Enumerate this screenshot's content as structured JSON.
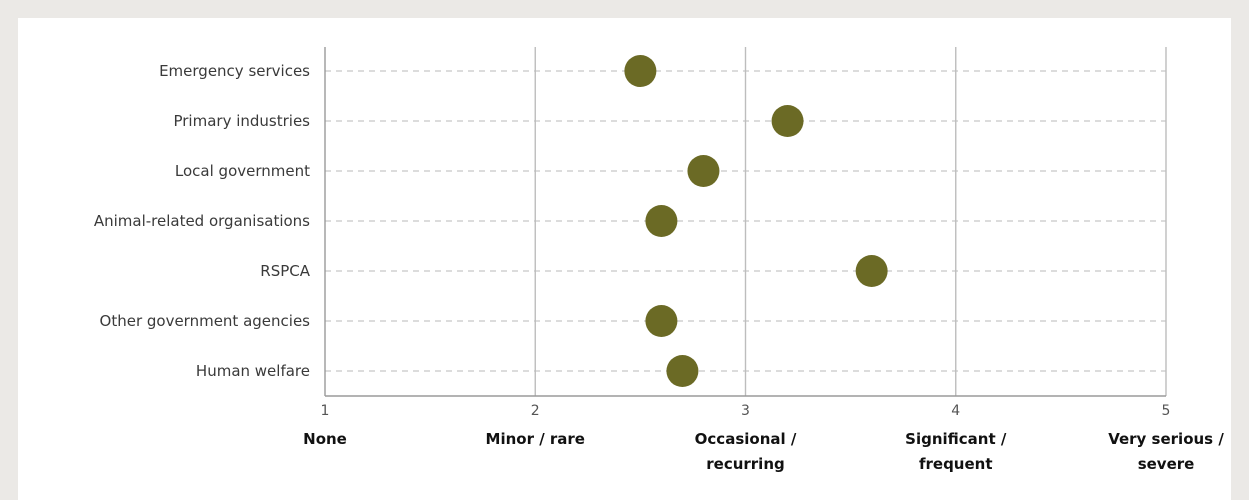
{
  "chart_data": {
    "type": "scatter",
    "categories": [
      "Emergency services",
      "Primary industries",
      "Local government",
      "Animal-related organisations",
      "RSPCA",
      "Other government agencies",
      "Human welfare"
    ],
    "values": [
      2.5,
      3.2,
      2.8,
      2.6,
      3.6,
      2.6,
      2.7
    ],
    "xlim": [
      1,
      5
    ],
    "xticks": [
      {
        "value": 1,
        "number": "1",
        "label": [
          "None"
        ]
      },
      {
        "value": 2,
        "number": "2",
        "label": [
          "Minor / rare"
        ]
      },
      {
        "value": 3,
        "number": "3",
        "label": [
          "Occasional  /",
          "recurring"
        ]
      },
      {
        "value": 4,
        "number": "4",
        "label": [
          "Significant /",
          "frequent"
        ]
      },
      {
        "value": 5,
        "number": "5",
        "label": [
          "Very serious /",
          "severe"
        ]
      }
    ],
    "title": "",
    "xlabel": "",
    "ylabel": "",
    "grid": true,
    "marker_color": "#6b6a25"
  },
  "colors": {
    "background": "#ebe9e6",
    "panel": "#ffffff",
    "grid_vertical": "#bdbdbd",
    "grid_dashed": "#d0d0d0"
  }
}
